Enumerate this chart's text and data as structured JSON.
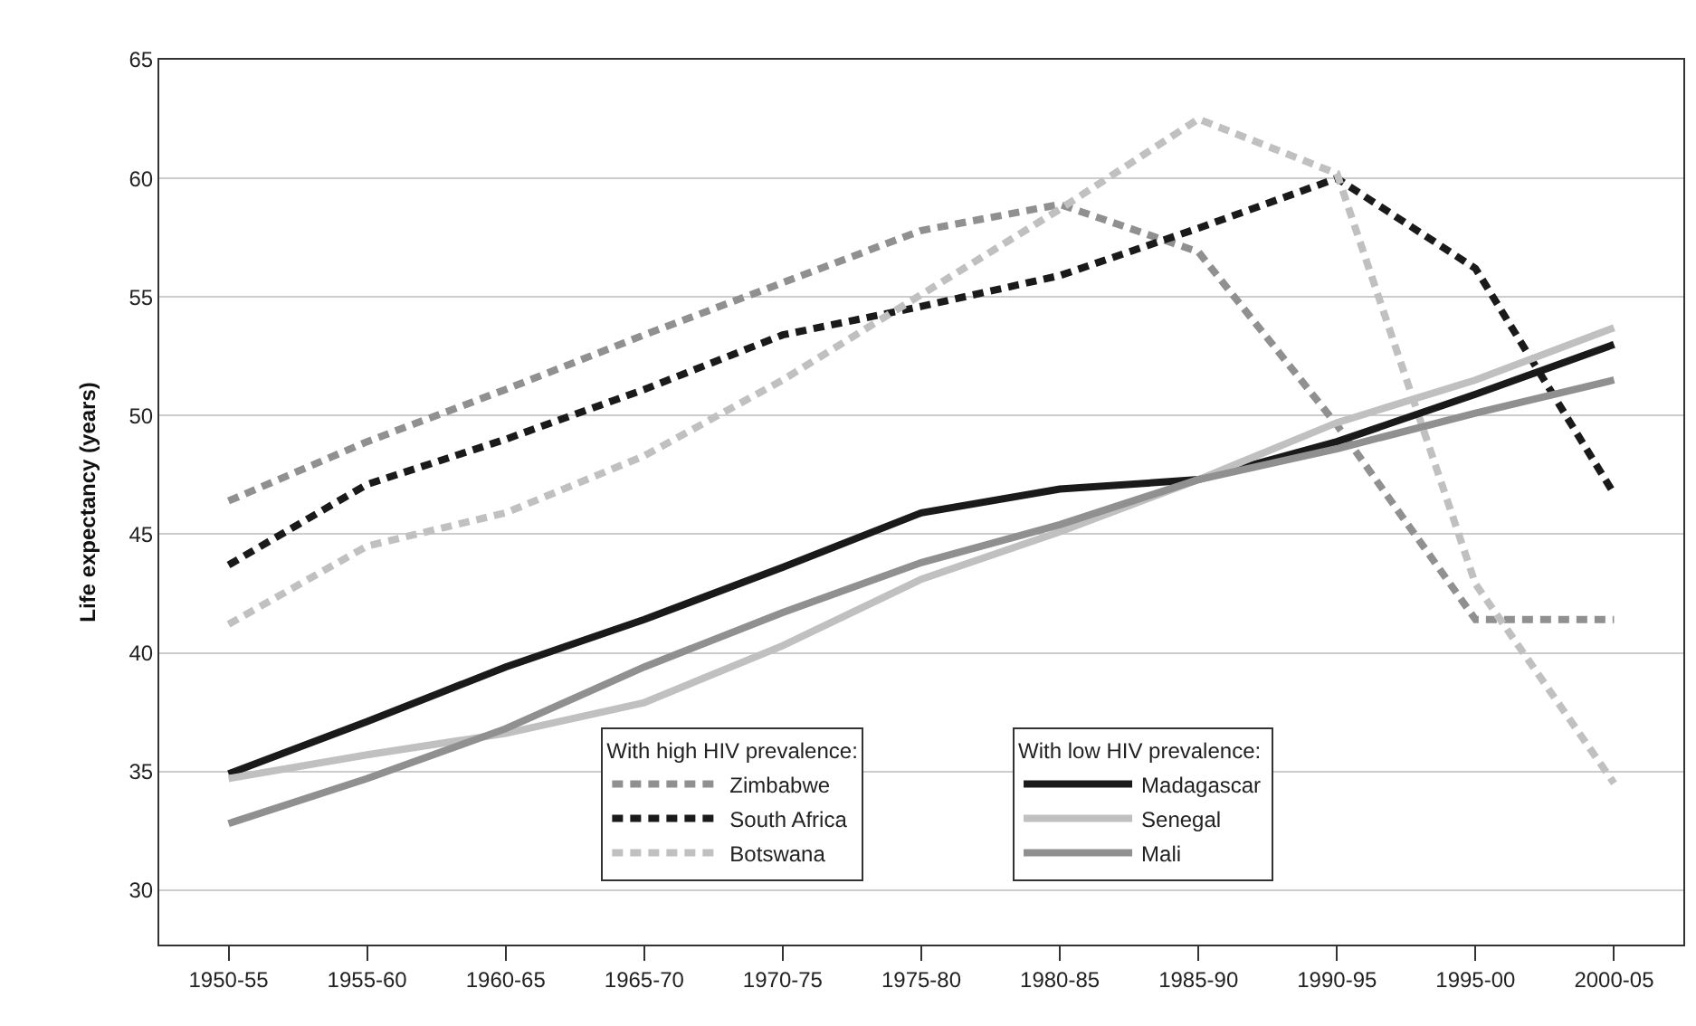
{
  "chart_data": {
    "type": "line",
    "ylabel": "Life expectancy (years)",
    "categories": [
      "1950-55",
      "1955-60",
      "1960-65",
      "1965-70",
      "1970-75",
      "1975-80",
      "1980-85",
      "1985-90",
      "1990-95",
      "1995-00",
      "2000-05"
    ],
    "ylim": [
      27.7,
      65
    ],
    "yticks": [
      30,
      35,
      40,
      45,
      50,
      55,
      60,
      65
    ],
    "grid": "y",
    "legend": "bottom",
    "marker": "none",
    "legend_title": [
      "With high HIV prevalence:",
      "With low HIV prevalence:"
    ],
    "series": [
      {
        "name": "Zimbabwe",
        "color": "#909090",
        "line_style": "dashed",
        "values": [
          46.4,
          48.9,
          51.1,
          53.4,
          55.6,
          57.8,
          58.9,
          56.9,
          49.6,
          41.4,
          41.4
        ]
      },
      {
        "name": "South Africa",
        "color": "#1a1a1a",
        "line_style": "dashed",
        "values": [
          43.7,
          47.1,
          49.0,
          51.1,
          53.4,
          54.6,
          55.9,
          57.9,
          60.0,
          56.2,
          46.7
        ]
      },
      {
        "name": "Botswana",
        "color": "#c0c0c0",
        "line_style": "dashed",
        "values": [
          41.2,
          44.5,
          45.9,
          48.3,
          51.5,
          55.1,
          58.7,
          62.5,
          60.2,
          42.9,
          34.5
        ]
      },
      {
        "name": "Madagascar",
        "color": "#1a1a1a",
        "line_style": "solid",
        "values": [
          34.9,
          37.1,
          39.4,
          41.4,
          43.6,
          45.9,
          46.9,
          47.3,
          48.9,
          50.9,
          53.0
        ]
      },
      {
        "name": "Senegal",
        "color": "#c0c0c0",
        "line_style": "solid",
        "values": [
          34.7,
          35.7,
          36.6,
          37.9,
          40.3,
          43.1,
          45.1,
          47.3,
          49.7,
          51.5,
          53.7
        ]
      },
      {
        "name": "Mali",
        "color": "#909090",
        "line_style": "solid",
        "values": [
          32.8,
          34.7,
          36.8,
          39.4,
          41.7,
          43.8,
          45.4,
          47.3,
          48.6,
          50.1,
          51.5
        ]
      }
    ]
  }
}
